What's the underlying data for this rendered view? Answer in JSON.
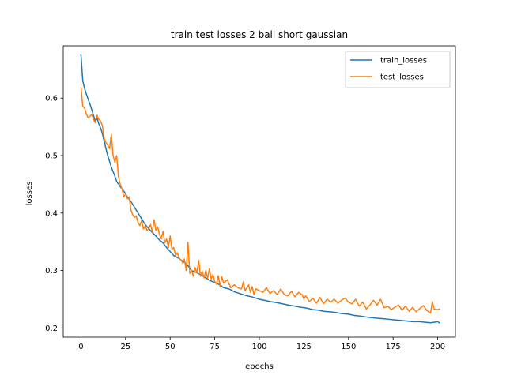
{
  "chart_data": {
    "type": "line",
    "title": "train test losses 2 ball short gaussian",
    "xlabel": "epochs",
    "ylabel": "losses",
    "xlim": [
      -9.95,
      209.95
    ],
    "ylim": [
      0.184,
      0.691
    ],
    "xticks": [
      0,
      25,
      50,
      75,
      100,
      125,
      150,
      175,
      200
    ],
    "yticks": [
      0.2,
      0.3,
      0.4,
      0.5,
      0.6
    ],
    "ytick_labels": [
      "0.2",
      "0.3",
      "0.4",
      "0.5",
      "0.6"
    ],
    "grid": false,
    "legend_position": "top-right",
    "series": [
      {
        "name": "train_losses",
        "color": "#1f77b4",
        "points": [
          [
            0,
            0.675
          ],
          [
            1,
            0.63
          ],
          [
            2,
            0.617
          ],
          [
            3,
            0.607
          ],
          [
            4,
            0.598
          ],
          [
            5,
            0.59
          ],
          [
            6,
            0.58
          ],
          [
            7,
            0.57
          ],
          [
            8,
            0.56
          ],
          [
            9,
            0.565
          ],
          [
            10,
            0.555
          ],
          [
            11,
            0.548
          ],
          [
            12,
            0.538
          ],
          [
            13,
            0.525
          ],
          [
            14,
            0.512
          ],
          [
            15,
            0.5
          ],
          [
            16,
            0.49
          ],
          [
            17,
            0.48
          ],
          [
            18,
            0.472
          ],
          [
            19,
            0.464
          ],
          [
            20,
            0.455
          ],
          [
            22,
            0.446
          ],
          [
            24,
            0.438
          ],
          [
            26,
            0.428
          ],
          [
            28,
            0.42
          ],
          [
            30,
            0.41
          ],
          [
            32,
            0.4
          ],
          [
            34,
            0.39
          ],
          [
            36,
            0.38
          ],
          [
            38,
            0.373
          ],
          [
            40,
            0.366
          ],
          [
            42,
            0.36
          ],
          [
            44,
            0.353
          ],
          [
            46,
            0.348
          ],
          [
            48,
            0.34
          ],
          [
            50,
            0.333
          ],
          [
            52,
            0.326
          ],
          [
            55,
            0.321
          ],
          [
            58,
            0.314
          ],
          [
            60,
            0.308
          ],
          [
            62,
            0.3
          ],
          [
            65,
            0.296
          ],
          [
            68,
            0.291
          ],
          [
            70,
            0.287
          ],
          [
            72,
            0.283
          ],
          [
            75,
            0.279
          ],
          [
            78,
            0.275
          ],
          [
            80,
            0.27
          ],
          [
            83,
            0.268
          ],
          [
            86,
            0.263
          ],
          [
            90,
            0.259
          ],
          [
            93,
            0.256
          ],
          [
            96,
            0.254
          ],
          [
            100,
            0.25
          ],
          [
            103,
            0.248
          ],
          [
            106,
            0.246
          ],
          [
            110,
            0.244
          ],
          [
            113,
            0.242
          ],
          [
            116,
            0.24
          ],
          [
            120,
            0.238
          ],
          [
            123,
            0.236
          ],
          [
            126,
            0.235
          ],
          [
            130,
            0.232
          ],
          [
            133,
            0.231
          ],
          [
            136,
            0.229
          ],
          [
            140,
            0.228
          ],
          [
            143,
            0.227
          ],
          [
            146,
            0.225
          ],
          [
            150,
            0.224
          ],
          [
            153,
            0.222
          ],
          [
            156,
            0.221
          ],
          [
            160,
            0.219
          ],
          [
            163,
            0.218
          ],
          [
            166,
            0.217
          ],
          [
            170,
            0.216
          ],
          [
            173,
            0.215
          ],
          [
            176,
            0.214
          ],
          [
            180,
            0.213
          ],
          [
            183,
            0.212
          ],
          [
            186,
            0.211
          ],
          [
            190,
            0.211
          ],
          [
            193,
            0.21
          ],
          [
            196,
            0.209
          ],
          [
            198,
            0.21
          ],
          [
            200,
            0.211
          ],
          [
            201,
            0.209
          ]
        ]
      },
      {
        "name": "test_losses",
        "color": "#ff7f0e",
        "points": [
          [
            0,
            0.618
          ],
          [
            1,
            0.585
          ],
          [
            2,
            0.583
          ],
          [
            3,
            0.572
          ],
          [
            4,
            0.566
          ],
          [
            5,
            0.568
          ],
          [
            6,
            0.572
          ],
          [
            7,
            0.563
          ],
          [
            8,
            0.557
          ],
          [
            9,
            0.57
          ],
          [
            10,
            0.563
          ],
          [
            11,
            0.56
          ],
          [
            12,
            0.552
          ],
          [
            13,
            0.53
          ],
          [
            14,
            0.522
          ],
          [
            15,
            0.518
          ],
          [
            16,
            0.512
          ],
          [
            17,
            0.537
          ],
          [
            18,
            0.5
          ],
          [
            19,
            0.488
          ],
          [
            20,
            0.5
          ],
          [
            21,
            0.463
          ],
          [
            22,
            0.45
          ],
          [
            23,
            0.442
          ],
          [
            24,
            0.428
          ],
          [
            25,
            0.433
          ],
          [
            26,
            0.425
          ],
          [
            27,
            0.428
          ],
          [
            28,
            0.405
          ],
          [
            29,
            0.397
          ],
          [
            30,
            0.392
          ],
          [
            31,
            0.395
          ],
          [
            32,
            0.383
          ],
          [
            33,
            0.378
          ],
          [
            34,
            0.387
          ],
          [
            35,
            0.372
          ],
          [
            36,
            0.378
          ],
          [
            37,
            0.37
          ],
          [
            38,
            0.373
          ],
          [
            39,
            0.38
          ],
          [
            40,
            0.367
          ],
          [
            41,
            0.388
          ],
          [
            42,
            0.37
          ],
          [
            43,
            0.376
          ],
          [
            44,
            0.363
          ],
          [
            45,
            0.355
          ],
          [
            46,
            0.368
          ],
          [
            47,
            0.348
          ],
          [
            48,
            0.355
          ],
          [
            49,
            0.34
          ],
          [
            50,
            0.36
          ],
          [
            51,
            0.337
          ],
          [
            52,
            0.34
          ],
          [
            53,
            0.326
          ],
          [
            54,
            0.331
          ],
          [
            55,
            0.321
          ],
          [
            56,
            0.319
          ],
          [
            57,
            0.313
          ],
          [
            58,
            0.32
          ],
          [
            59,
            0.3
          ],
          [
            60,
            0.349
          ],
          [
            61,
            0.295
          ],
          [
            62,
            0.3
          ],
          [
            63,
            0.29
          ],
          [
            64,
            0.305
          ],
          [
            65,
            0.296
          ],
          [
            66,
            0.318
          ],
          [
            67,
            0.29
          ],
          [
            68,
            0.299
          ],
          [
            69,
            0.287
          ],
          [
            70,
            0.3
          ],
          [
            71,
            0.286
          ],
          [
            72,
            0.303
          ],
          [
            73,
            0.285
          ],
          [
            74,
            0.293
          ],
          [
            75,
            0.281
          ],
          [
            76,
            0.276
          ],
          [
            77,
            0.291
          ],
          [
            78,
            0.272
          ],
          [
            79,
            0.289
          ],
          [
            80,
            0.278
          ],
          [
            82,
            0.284
          ],
          [
            84,
            0.27
          ],
          [
            86,
            0.275
          ],
          [
            88,
            0.27
          ],
          [
            90,
            0.268
          ],
          [
            91,
            0.28
          ],
          [
            92,
            0.265
          ],
          [
            94,
            0.275
          ],
          [
            95,
            0.262
          ],
          [
            96,
            0.272
          ],
          [
            97,
            0.258
          ],
          [
            98,
            0.268
          ],
          [
            100,
            0.265
          ],
          [
            102,
            0.262
          ],
          [
            104,
            0.27
          ],
          [
            106,
            0.26
          ],
          [
            108,
            0.265
          ],
          [
            110,
            0.258
          ],
          [
            112,
            0.268
          ],
          [
            114,
            0.258
          ],
          [
            116,
            0.256
          ],
          [
            118,
            0.264
          ],
          [
            120,
            0.254
          ],
          [
            122,
            0.262
          ],
          [
            124,
            0.258
          ],
          [
            125,
            0.25
          ],
          [
            126,
            0.256
          ],
          [
            128,
            0.246
          ],
          [
            130,
            0.252
          ],
          [
            132,
            0.243
          ],
          [
            134,
            0.253
          ],
          [
            136,
            0.242
          ],
          [
            138,
            0.25
          ],
          [
            140,
            0.245
          ],
          [
            142,
            0.25
          ],
          [
            144,
            0.243
          ],
          [
            146,
            0.248
          ],
          [
            148,
            0.252
          ],
          [
            150,
            0.245
          ],
          [
            152,
            0.242
          ],
          [
            154,
            0.25
          ],
          [
            156,
            0.238
          ],
          [
            158,
            0.245
          ],
          [
            160,
            0.233
          ],
          [
            162,
            0.24
          ],
          [
            164,
            0.248
          ],
          [
            166,
            0.24
          ],
          [
            168,
            0.25
          ],
          [
            170,
            0.235
          ],
          [
            172,
            0.238
          ],
          [
            174,
            0.232
          ],
          [
            176,
            0.236
          ],
          [
            178,
            0.24
          ],
          [
            180,
            0.231
          ],
          [
            182,
            0.238
          ],
          [
            184,
            0.229
          ],
          [
            186,
            0.236
          ],
          [
            188,
            0.228
          ],
          [
            190,
            0.234
          ],
          [
            192,
            0.239
          ],
          [
            194,
            0.23
          ],
          [
            196,
            0.226
          ],
          [
            197,
            0.246
          ],
          [
            198,
            0.233
          ],
          [
            200,
            0.232
          ],
          [
            201,
            0.233
          ]
        ]
      }
    ]
  }
}
